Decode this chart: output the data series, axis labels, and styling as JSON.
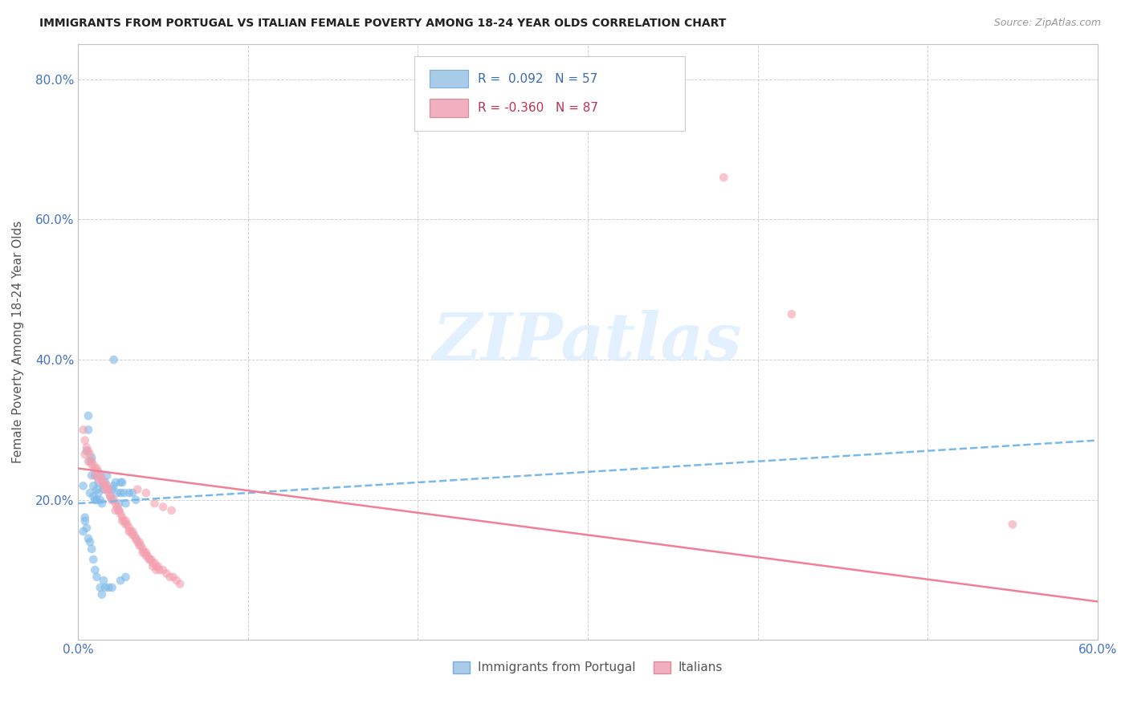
{
  "title": "IMMIGRANTS FROM PORTUGAL VS ITALIAN FEMALE POVERTY AMONG 18-24 YEAR OLDS CORRELATION CHART",
  "source": "Source: ZipAtlas.com",
  "ylabel": "Female Poverty Among 18-24 Year Olds",
  "xlim": [
    0.0,
    0.6
  ],
  "ylim": [
    0.0,
    0.85
  ],
  "watermark_text": "ZIPatlas",
  "background_color": "#ffffff",
  "grid_color": "#cccccc",
  "title_color": "#222222",
  "source_color": "#999999",
  "ylabel_color": "#555555",
  "tick_color": "#4472c4",
  "blue_color": "#7ab8e8",
  "pink_color": "#f4a0b0",
  "blue_line_color": "#7ab8e8",
  "pink_line_color": "#f08098",
  "watermark_color": "#ddeeff",
  "blue_scatter": [
    [
      0.003,
      0.22
    ],
    [
      0.005,
      0.27
    ],
    [
      0.006,
      0.3
    ],
    [
      0.007,
      0.21
    ],
    [
      0.007,
      0.255
    ],
    [
      0.008,
      0.235
    ],
    [
      0.009,
      0.22
    ],
    [
      0.009,
      0.205
    ],
    [
      0.01,
      0.235
    ],
    [
      0.01,
      0.2
    ],
    [
      0.011,
      0.215
    ],
    [
      0.011,
      0.2
    ],
    [
      0.012,
      0.225
    ],
    [
      0.012,
      0.21
    ],
    [
      0.013,
      0.235
    ],
    [
      0.013,
      0.2
    ],
    [
      0.014,
      0.195
    ],
    [
      0.015,
      0.215
    ],
    [
      0.015,
      0.22
    ],
    [
      0.016,
      0.225
    ],
    [
      0.017,
      0.235
    ],
    [
      0.018,
      0.215
    ],
    [
      0.019,
      0.205
    ],
    [
      0.02,
      0.215
    ],
    [
      0.021,
      0.22
    ],
    [
      0.022,
      0.225
    ],
    [
      0.023,
      0.21
    ],
    [
      0.024,
      0.195
    ],
    [
      0.025,
      0.21
    ],
    [
      0.025,
      0.225
    ],
    [
      0.026,
      0.225
    ],
    [
      0.027,
      0.21
    ],
    [
      0.028,
      0.195
    ],
    [
      0.03,
      0.21
    ],
    [
      0.032,
      0.21
    ],
    [
      0.034,
      0.2
    ],
    [
      0.004,
      0.175
    ],
    [
      0.005,
      0.16
    ],
    [
      0.006,
      0.145
    ],
    [
      0.007,
      0.14
    ],
    [
      0.008,
      0.13
    ],
    [
      0.009,
      0.115
    ],
    [
      0.01,
      0.1
    ],
    [
      0.011,
      0.09
    ],
    [
      0.013,
      0.075
    ],
    [
      0.014,
      0.065
    ],
    [
      0.015,
      0.085
    ],
    [
      0.016,
      0.075
    ],
    [
      0.018,
      0.075
    ],
    [
      0.02,
      0.075
    ],
    [
      0.025,
      0.085
    ],
    [
      0.028,
      0.09
    ],
    [
      0.021,
      0.4
    ],
    [
      0.004,
      0.17
    ],
    [
      0.003,
      0.155
    ],
    [
      0.006,
      0.32
    ],
    [
      0.008,
      0.26
    ]
  ],
  "pink_scatter": [
    [
      0.003,
      0.3
    ],
    [
      0.004,
      0.285
    ],
    [
      0.005,
      0.275
    ],
    [
      0.006,
      0.27
    ],
    [
      0.007,
      0.265
    ],
    [
      0.008,
      0.255
    ],
    [
      0.009,
      0.25
    ],
    [
      0.01,
      0.245
    ],
    [
      0.011,
      0.245
    ],
    [
      0.012,
      0.24
    ],
    [
      0.013,
      0.235
    ],
    [
      0.014,
      0.23
    ],
    [
      0.015,
      0.225
    ],
    [
      0.016,
      0.22
    ],
    [
      0.017,
      0.22
    ],
    [
      0.018,
      0.215
    ],
    [
      0.019,
      0.205
    ],
    [
      0.02,
      0.2
    ],
    [
      0.021,
      0.2
    ],
    [
      0.022,
      0.195
    ],
    [
      0.023,
      0.19
    ],
    [
      0.024,
      0.185
    ],
    [
      0.025,
      0.18
    ],
    [
      0.026,
      0.175
    ],
    [
      0.027,
      0.17
    ],
    [
      0.028,
      0.17
    ],
    [
      0.029,
      0.165
    ],
    [
      0.03,
      0.16
    ],
    [
      0.031,
      0.155
    ],
    [
      0.032,
      0.155
    ],
    [
      0.033,
      0.15
    ],
    [
      0.034,
      0.145
    ],
    [
      0.035,
      0.14
    ],
    [
      0.036,
      0.14
    ],
    [
      0.037,
      0.135
    ],
    [
      0.038,
      0.13
    ],
    [
      0.039,
      0.125
    ],
    [
      0.04,
      0.125
    ],
    [
      0.041,
      0.12
    ],
    [
      0.042,
      0.115
    ],
    [
      0.043,
      0.115
    ],
    [
      0.044,
      0.11
    ],
    [
      0.045,
      0.11
    ],
    [
      0.046,
      0.105
    ],
    [
      0.047,
      0.105
    ],
    [
      0.048,
      0.1
    ],
    [
      0.05,
      0.1
    ],
    [
      0.052,
      0.095
    ],
    [
      0.054,
      0.09
    ],
    [
      0.056,
      0.09
    ],
    [
      0.058,
      0.085
    ],
    [
      0.06,
      0.08
    ],
    [
      0.035,
      0.215
    ],
    [
      0.04,
      0.21
    ],
    [
      0.045,
      0.195
    ],
    [
      0.05,
      0.19
    ],
    [
      0.055,
      0.185
    ],
    [
      0.004,
      0.265
    ],
    [
      0.006,
      0.255
    ],
    [
      0.008,
      0.25
    ],
    [
      0.01,
      0.235
    ],
    [
      0.012,
      0.23
    ],
    [
      0.014,
      0.225
    ],
    [
      0.016,
      0.215
    ],
    [
      0.018,
      0.21
    ],
    [
      0.02,
      0.2
    ],
    [
      0.022,
      0.185
    ],
    [
      0.024,
      0.185
    ],
    [
      0.026,
      0.17
    ],
    [
      0.028,
      0.165
    ],
    [
      0.03,
      0.155
    ],
    [
      0.032,
      0.15
    ],
    [
      0.034,
      0.145
    ],
    [
      0.036,
      0.135
    ],
    [
      0.038,
      0.125
    ],
    [
      0.04,
      0.12
    ],
    [
      0.042,
      0.115
    ],
    [
      0.044,
      0.105
    ],
    [
      0.046,
      0.1
    ],
    [
      0.38,
      0.66
    ],
    [
      0.42,
      0.465
    ],
    [
      0.55,
      0.165
    ]
  ],
  "blue_line_x": [
    0.0,
    0.6
  ],
  "blue_line_y": [
    0.195,
    0.285
  ],
  "pink_line_x": [
    0.0,
    0.6
  ],
  "pink_line_y": [
    0.245,
    0.055
  ]
}
